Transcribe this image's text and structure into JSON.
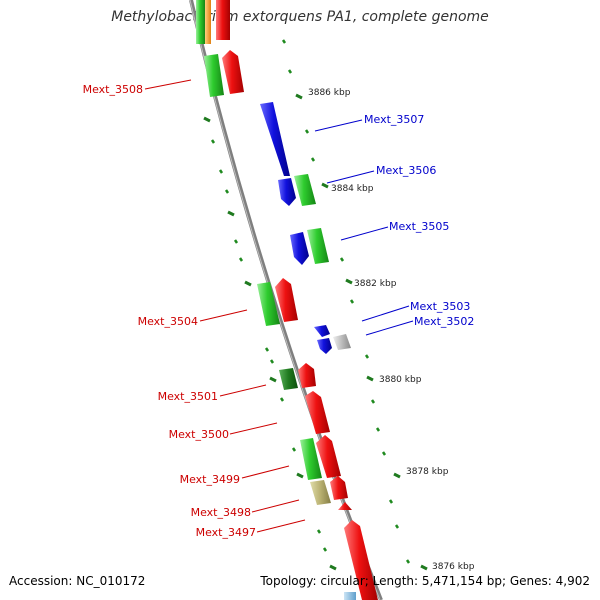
{
  "title": "Methylobacterium extorquens PA1, complete genome",
  "footer": {
    "accession": "Accession: NC_010172",
    "summary": "Topology: circular; Length: 5,471,154 bp; Genes: 4,902"
  },
  "colors": {
    "backbone": "#8a8a8a",
    "tick": "#1f8a1f",
    "label_forward": "#0000cc",
    "label_reverse": "#cc0000",
    "gene_red": "#ee1111",
    "gene_green": "#2ecc2e",
    "gene_darkgreen": "#1f7a1f",
    "gene_blue": "#1111dd",
    "gene_gray": "#bbbbbb",
    "gene_khaki": "#b8b070",
    "gene_orange": "#f0a030",
    "gene_lightblue": "#88bbdd"
  },
  "scale_labels": [
    "3886 kbp",
    "3884 kbp",
    "3882 kbp",
    "3880 kbp",
    "3878 kbp",
    "3876 kbp"
  ],
  "gene_labels": {
    "forward": [
      "Mext_3507",
      "Mext_3506",
      "Mext_3505",
      "Mext_3503",
      "Mext_3502"
    ],
    "reverse": [
      "Mext_3508",
      "Mext_3504",
      "Mext_3501",
      "Mext_3500",
      "Mext_3499",
      "Mext_3498",
      "Mext_3497"
    ]
  }
}
